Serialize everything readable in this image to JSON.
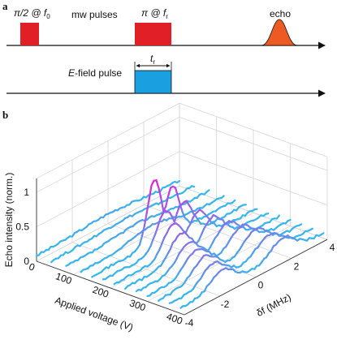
{
  "panel_a": {
    "label": "a",
    "pulse1_label": "π/2 @ f",
    "pulse1_sub": "0",
    "mw_label": "mw pulses",
    "pulse2_label": "π @ f",
    "pulse2_sub": "r",
    "echo_label": "echo",
    "efield_label": "-field pulse",
    "efield_italic": "E",
    "tr_label": "t",
    "tr_sub": "r",
    "colors": {
      "mw": "#e01f27",
      "echo": "#ee5a24",
      "efield": "#1aa0e0"
    }
  },
  "panel_b": {
    "label": "b"
  },
  "chart_data": {
    "type": "line",
    "subtype": "waterfall-3d",
    "xlabel": "Applied voltage (V)",
    "xticks": [
      0,
      100,
      200,
      300,
      400
    ],
    "xlim": [
      0,
      400
    ],
    "ylabel": "δf (MHz)",
    "yticks": [
      -4,
      -2,
      0,
      2,
      4
    ],
    "ylim": [
      -4,
      4
    ],
    "zlabel": "Echo intensity (norm.)",
    "zticks": [
      0,
      0.5,
      1
    ],
    "zticklabels": [
      "0",
      "0.5",
      "1"
    ],
    "zlim": [
      0,
      1.2
    ],
    "colormap": [
      "#22c8ee",
      "#a05ae8",
      "#e020d8"
    ],
    "series": [
      {
        "voltage": 0,
        "peak_df": 0.0,
        "peak": 0.14,
        "width": 2.0
      },
      {
        "voltage": 40,
        "peak_df": 0.0,
        "peak": 0.13,
        "width": 2.0
      },
      {
        "voltage": 80,
        "peak_df": 0.0,
        "peak": 0.16,
        "width": 1.8
      },
      {
        "voltage": 120,
        "peak_df": 0.0,
        "peak": 0.22,
        "width": 1.5
      },
      {
        "voltage": 150,
        "peak_df": 0.0,
        "peak": 1.0,
        "width": 0.55,
        "split": 1.0
      },
      {
        "voltage": 180,
        "peak_df": 0.0,
        "peak": 0.6,
        "width": 0.7,
        "split": 1.0
      },
      {
        "voltage": 210,
        "peak_df": 0.0,
        "peak": 0.5,
        "width": 0.75,
        "split": 1.4
      },
      {
        "voltage": 240,
        "peak_df": 0.0,
        "peak": 0.45,
        "width": 0.8,
        "split": 1.8
      },
      {
        "voltage": 270,
        "peak_df": 0.0,
        "peak": 0.4,
        "width": 0.85,
        "split": 2.2
      },
      {
        "voltage": 300,
        "peak_df": 0.0,
        "peak": 0.38,
        "width": 0.9,
        "split": 2.5
      },
      {
        "voltage": 330,
        "peak_df": 0.0,
        "peak": 0.36,
        "width": 0.9,
        "split": 2.8
      },
      {
        "voltage": 360,
        "peak_df": 0.0,
        "peak": 0.33,
        "width": 0.9,
        "split": 3.1
      },
      {
        "voltage": 390,
        "peak_df": 0.0,
        "peak": 0.32,
        "width": 0.9,
        "split": 3.4
      }
    ]
  }
}
